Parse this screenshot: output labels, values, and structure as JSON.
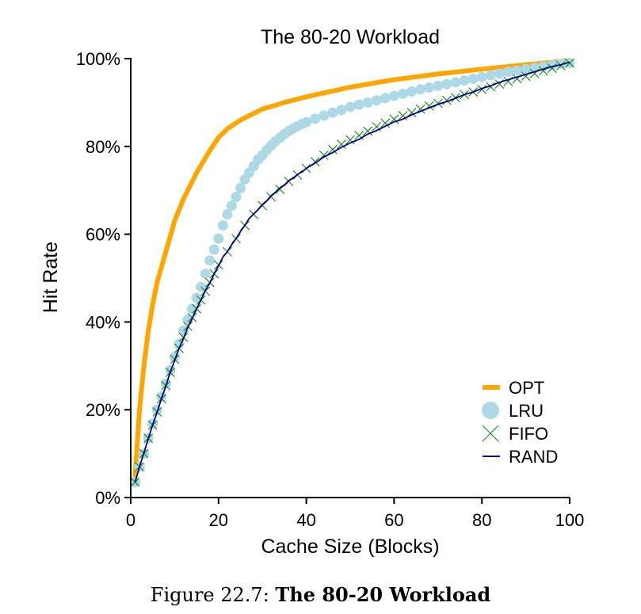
{
  "figure": {
    "caption_prefix": "Figure 22.7:",
    "caption_title": "The 80-20 Workload"
  },
  "chart_data": {
    "type": "line",
    "title": "The 80-20 Workload",
    "xlabel": "Cache Size (Blocks)",
    "ylabel": "Hit Rate",
    "xlim": [
      0,
      100
    ],
    "ylim": [
      0,
      100
    ],
    "x_ticks": [
      0,
      20,
      40,
      60,
      80,
      100
    ],
    "x_tick_labels": [
      "0",
      "20",
      "40",
      "60",
      "80",
      "100"
    ],
    "y_ticks": [
      0,
      20,
      40,
      60,
      80,
      100
    ],
    "y_tick_labels": [
      "0%",
      "20%",
      "40%",
      "60%",
      "80%",
      "100%"
    ],
    "grid": false,
    "legend_position": "bottom-right",
    "series": [
      {
        "name": "OPT",
        "color": "#ffa500",
        "style": "thick-line",
        "x": [
          1,
          2,
          3,
          4,
          5,
          6,
          8,
          10,
          12,
          15,
          18,
          20,
          22,
          25,
          30,
          35,
          40,
          50,
          60,
          70,
          80,
          90,
          100
        ],
        "y": [
          5,
          20,
          30,
          38,
          44,
          49,
          56,
          63,
          68,
          74,
          79,
          82,
          84,
          86,
          88.5,
          90,
          91.3,
          93.5,
          95.2,
          96.5,
          97.6,
          98.6,
          99.5
        ]
      },
      {
        "name": "LRU",
        "color": "#add8e6",
        "style": "dots",
        "x": [
          1,
          2,
          3,
          4,
          5,
          6,
          7,
          8,
          9,
          10,
          11,
          12,
          13,
          14,
          15,
          16,
          17,
          18,
          19,
          20,
          21,
          22,
          23,
          24,
          25,
          26,
          27,
          28,
          29,
          30,
          31,
          32,
          33,
          34,
          35,
          36,
          37,
          38,
          39,
          40,
          42,
          44,
          46,
          48,
          50,
          52,
          54,
          56,
          58,
          60,
          62,
          64,
          66,
          68,
          70,
          72,
          74,
          76,
          78,
          80,
          82,
          84,
          86,
          88,
          90,
          92,
          94,
          96,
          98,
          100
        ],
        "y": [
          3.5,
          7,
          10,
          13.5,
          16.8,
          20,
          23,
          26,
          29,
          32,
          35,
          38,
          40.5,
          43,
          45.5,
          48,
          51,
          54,
          56.5,
          59,
          62,
          64.5,
          66.5,
          68.5,
          70.5,
          72.5,
          74,
          75.5,
          77,
          78,
          79.2,
          80.2,
          81.2,
          82,
          82.8,
          83.5,
          84.1,
          84.6,
          85.1,
          85.5,
          86.3,
          87,
          87.7,
          88.3,
          89,
          89.5,
          90,
          90.5,
          91,
          91.5,
          92,
          92.5,
          93,
          93.4,
          93.8,
          94.2,
          94.6,
          95,
          95.4,
          95.8,
          96.2,
          96.6,
          97,
          97.3,
          97.6,
          97.9,
          98.2,
          98.5,
          98.8,
          99
        ]
      },
      {
        "name": "FIFO",
        "color": "#228b22",
        "style": "x-markers",
        "x": [
          1,
          2,
          3,
          4,
          5,
          6,
          7,
          8,
          9,
          10,
          11,
          12,
          13,
          14,
          15,
          16,
          17,
          18,
          19,
          20,
          22,
          24,
          26,
          28,
          30,
          32,
          34,
          36,
          38,
          40,
          42,
          44,
          46,
          48,
          50,
          52,
          54,
          56,
          58,
          60,
          62,
          64,
          66,
          68,
          70,
          72,
          74,
          76,
          78,
          80,
          82,
          84,
          86,
          88,
          90,
          92,
          94,
          96,
          98,
          100
        ],
        "y": [
          3.5,
          7,
          10,
          13.5,
          16.5,
          19.5,
          22.5,
          25.5,
          28.5,
          31.5,
          34,
          36.5,
          39,
          41,
          43,
          45,
          47,
          49,
          51,
          53,
          56,
          59,
          62,
          64.5,
          66.5,
          68.5,
          70.2,
          72,
          73.5,
          75,
          76.5,
          78,
          79.3,
          80.5,
          81.5,
          82.5,
          83.5,
          84.5,
          85.3,
          86.2,
          87,
          87.7,
          88.5,
          89.2,
          89.8,
          90.5,
          91.1,
          91.8,
          92.4,
          93,
          93.6,
          94.2,
          94.8,
          95.4,
          96,
          96.6,
          97.2,
          97.8,
          98.4,
          99
        ]
      },
      {
        "name": "RAND",
        "color": "#000080",
        "style": "thin-line",
        "x": [
          1,
          2,
          3,
          4,
          5,
          6,
          7,
          8,
          9,
          10,
          11,
          12,
          13,
          14,
          15,
          16,
          17,
          18,
          19,
          20,
          21,
          22,
          23,
          24,
          25,
          26,
          27,
          28,
          29,
          30,
          31,
          32,
          33,
          34,
          35,
          36,
          37,
          38,
          39,
          40,
          42,
          44,
          46,
          48,
          50,
          52,
          54,
          56,
          58,
          60,
          62,
          64,
          66,
          68,
          70,
          72,
          74,
          76,
          78,
          80,
          82,
          84,
          86,
          88,
          90,
          92,
          94,
          96,
          98,
          100
        ],
        "y": [
          3.5,
          7,
          10.2,
          13.4,
          16.6,
          19.4,
          22.6,
          25.4,
          28.6,
          31.2,
          34,
          36.2,
          38.8,
          40.8,
          43,
          45,
          47.2,
          48.8,
          51,
          52.8,
          54.8,
          56,
          57.6,
          59,
          60.6,
          62,
          63.6,
          64.6,
          65.6,
          66.8,
          67.6,
          68.8,
          69.6,
          70.6,
          71.2,
          72.2,
          72.8,
          73.6,
          74.2,
          75,
          76.2,
          77.6,
          78.6,
          79.8,
          80.8,
          81.6,
          82.8,
          83.6,
          84.6,
          85.6,
          86.2,
          87.2,
          88,
          88.8,
          89.6,
          90.2,
          91,
          91.8,
          92.4,
          93.2,
          93.8,
          94.6,
          95.2,
          95.8,
          96.4,
          97,
          97.6,
          98.2,
          98.6,
          99.2
        ]
      }
    ]
  }
}
